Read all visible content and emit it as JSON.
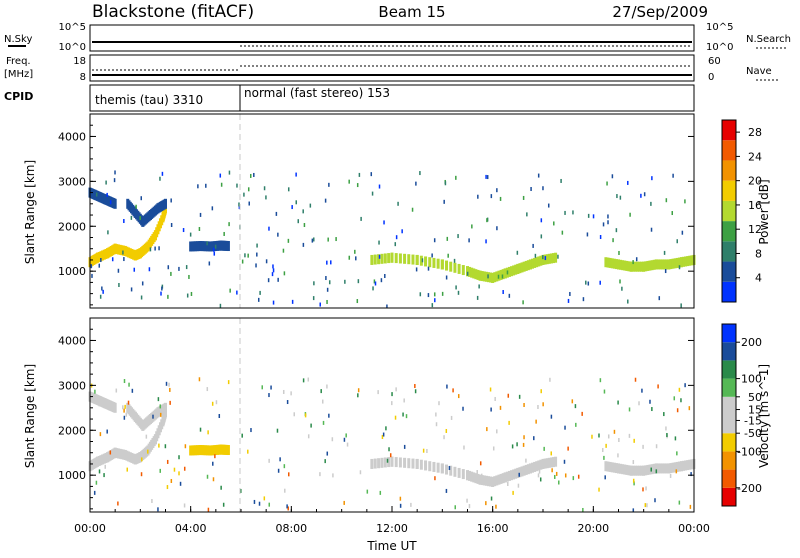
{
  "header": {
    "station": "Blackstone (fitACF)",
    "beam": "Beam 15",
    "date": "27/Sep/2009"
  },
  "status_panels": {
    "nsky_label": "N.Sky",
    "nsearch_label": "N.Search",
    "nsky_ticks": [
      "10^5",
      "10^0"
    ],
    "nsearch_ticks": [
      "10^5",
      "10^0"
    ],
    "freq_label": "Freq.",
    "freq_unit": "[MHz]",
    "freq_ticks": [
      "18",
      "8"
    ],
    "nave_label": "Nave",
    "nave_ticks": [
      "60",
      "0"
    ],
    "cpid_label": "CPID",
    "cpid_segments": [
      {
        "label": "themis (tau) 3310",
        "start_hour": 0
      },
      {
        "label": "normal (fast stereo) 153",
        "start_hour": 6
      }
    ]
  },
  "colors": {
    "power_scale": [
      "#0033ff",
      "#1a4c9a",
      "#2f7f6a",
      "#3da043",
      "#b3d930",
      "#f2cc00",
      "#f29200",
      "#f25a00",
      "#e60000"
    ],
    "velocity_scale": [
      "#e60000",
      "#f25a00",
      "#f29200",
      "#f2cc00",
      "#cccccc",
      "#cccccc",
      "#55b855",
      "#2a8a4a",
      "#1a4c9a",
      "#0033ff"
    ]
  },
  "chart_data": [
    {
      "type": "heatmap",
      "title": "Power",
      "xlabel": "",
      "ylabel": "Slant Range [km]",
      "xlim": [
        0,
        24
      ],
      "ylim": [
        180,
        4500
      ],
      "y_ticks": [
        1000,
        2000,
        3000,
        4000
      ],
      "colorbar": {
        "label": "Power [dB]",
        "ticks": [
          4,
          8,
          12,
          16,
          20,
          24,
          28
        ],
        "range": [
          0,
          30
        ]
      },
      "bands": [
        {
          "x": [
            0.0,
            0.3,
            0.7,
            1.0,
            1.4,
            1.8,
            2.0,
            2.3,
            2.6,
            2.9,
            3.0
          ],
          "y": [
            1200,
            1300,
            1400,
            1500,
            1450,
            1350,
            1400,
            1550,
            1800,
            2200,
            2400
          ],
          "value": 18
        },
        {
          "x": [
            4.0,
            4.4,
            4.8,
            5.2,
            5.5
          ],
          "y": [
            1550,
            1560,
            1550,
            1570,
            1560
          ],
          "value": 6
        },
        {
          "x": [
            11.2,
            12.0,
            13.0,
            14.0,
            15.0,
            15.5,
            16.0,
            16.5,
            17.0,
            17.5,
            18.0,
            18.5
          ],
          "y": [
            1250,
            1300,
            1250,
            1150,
            1000,
            900,
            850,
            950,
            1050,
            1150,
            1250,
            1300
          ],
          "value": 14
        },
        {
          "x": [
            20.5,
            21.0,
            21.5,
            22.0,
            22.5,
            23.0,
            23.5,
            24.0
          ],
          "y": [
            1200,
            1150,
            1100,
            1100,
            1150,
            1150,
            1200,
            1250
          ],
          "value": 14
        },
        {
          "x": [
            0.0,
            0.2,
            0.4,
            0.6,
            0.8,
            1.0
          ],
          "y": [
            2750,
            2700,
            2650,
            2600,
            2550,
            2500
          ],
          "value": 6
        },
        {
          "x": [
            1.5,
            1.8,
            2.1,
            2.4,
            2.7,
            3.0
          ],
          "y": [
            2500,
            2300,
            2100,
            2250,
            2400,
            2500
          ],
          "value": 6
        }
      ]
    },
    {
      "type": "heatmap",
      "title": "Velocity",
      "xlabel": "Time UT",
      "ylabel": "Slant Range [km]",
      "xlim": [
        0,
        24
      ],
      "ylim": [
        180,
        4500
      ],
      "y_ticks": [
        1000,
        2000,
        3000,
        4000
      ],
      "x_ticks": [
        "00:00",
        "04:00",
        "08:00",
        "12:00",
        "16:00",
        "20:00",
        "00:00"
      ],
      "colorbar": {
        "label": "Velocity [m s^-1]",
        "ticks": [
          200,
          100,
          50,
          15,
          -15,
          -50,
          -100,
          -200
        ],
        "range": [
          -250,
          250
        ]
      },
      "bands": [
        {
          "x": [
            0.0,
            0.3,
            0.7,
            1.0,
            1.4,
            1.8,
            2.0,
            2.3,
            2.6,
            2.9,
            3.0
          ],
          "y": [
            1200,
            1300,
            1400,
            1500,
            1450,
            1350,
            1400,
            1550,
            1800,
            2200,
            2400
          ],
          "value": 0
        },
        {
          "x": [
            4.0,
            4.4,
            4.8,
            5.2,
            5.5
          ],
          "y": [
            1550,
            1560,
            1550,
            1570,
            1560
          ],
          "value": -60
        },
        {
          "x": [
            11.2,
            12.0,
            13.0,
            14.0,
            15.0,
            15.5,
            16.0,
            16.5,
            17.0,
            17.5,
            18.0,
            18.5
          ],
          "y": [
            1250,
            1300,
            1250,
            1150,
            1000,
            900,
            850,
            950,
            1050,
            1150,
            1250,
            1300
          ],
          "value": 0
        },
        {
          "x": [
            20.5,
            21.0,
            21.5,
            22.0,
            22.5,
            23.0,
            23.5,
            24.0
          ],
          "y": [
            1200,
            1150,
            1100,
            1100,
            1150,
            1150,
            1200,
            1250
          ],
          "value": 0
        },
        {
          "x": [
            0.0,
            0.2,
            0.4,
            0.6,
            0.8,
            1.0
          ],
          "y": [
            2750,
            2700,
            2650,
            2600,
            2550,
            2500
          ],
          "value": 20
        },
        {
          "x": [
            1.5,
            1.8,
            2.1,
            2.4,
            2.7,
            3.0
          ],
          "y": [
            2500,
            2300,
            2100,
            2250,
            2400,
            2500
          ],
          "value": 0
        }
      ]
    }
  ]
}
